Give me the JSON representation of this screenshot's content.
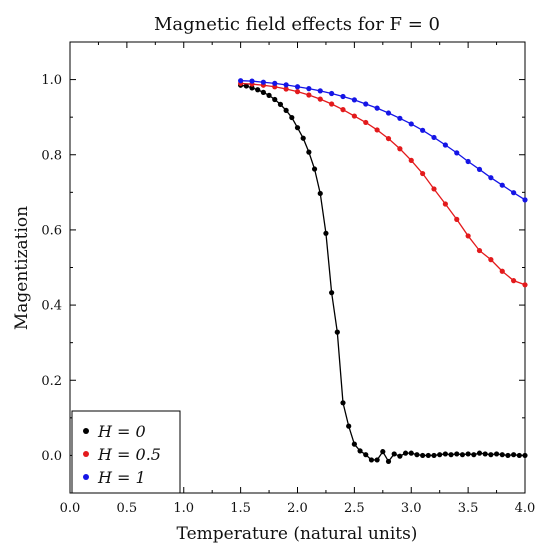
{
  "chart_data": {
    "type": "line",
    "title": "Magnetic field effects for F = 0",
    "xlabel": "Temperature (natural units)",
    "ylabel": "Magentization",
    "xlim": [
      0.0,
      4.0
    ],
    "ylim": [
      -0.1,
      1.1
    ],
    "xticks": [
      "0.0",
      "0.5",
      "1.0",
      "1.5",
      "2.0",
      "2.5",
      "3.0",
      "3.5",
      "4.0"
    ],
    "yticks": [
      "0.0",
      "0.2",
      "0.4",
      "0.6",
      "0.8",
      "1.0"
    ],
    "grid": false,
    "legend_position": "bottom-left",
    "series": [
      {
        "name": "H = 0",
        "color": "#000000",
        "x": [
          1.5,
          1.55,
          1.6,
          1.65,
          1.7,
          1.75,
          1.8,
          1.85,
          1.9,
          1.95,
          2.0,
          2.05,
          2.1,
          2.15,
          2.2,
          2.25,
          2.3,
          2.35,
          2.4,
          2.45,
          2.5,
          2.55,
          2.6,
          2.65,
          2.7,
          2.75,
          2.8,
          2.85,
          2.9,
          2.95,
          3.0,
          3.05,
          3.1,
          3.15,
          3.2,
          3.25,
          3.3,
          3.35,
          3.4,
          3.45,
          3.5,
          3.55,
          3.6,
          3.65,
          3.7,
          3.75,
          3.8,
          3.85,
          3.9,
          3.95,
          4.0
        ],
        "values": [
          0.985,
          0.983,
          0.978,
          0.973,
          0.966,
          0.958,
          0.947,
          0.934,
          0.918,
          0.899,
          0.872,
          0.844,
          0.807,
          0.762,
          0.697,
          0.591,
          0.433,
          0.328,
          0.14,
          0.078,
          0.03,
          0.012,
          0.002,
          -0.012,
          -0.012,
          0.01,
          -0.016,
          0.004,
          -0.002,
          0.006,
          0.006,
          0.002,
          0.0,
          0.0,
          0.0,
          0.002,
          0.004,
          0.002,
          0.004,
          0.002,
          0.004,
          0.002,
          0.006,
          0.004,
          0.002,
          0.004,
          0.002,
          0.0,
          0.002,
          0.0,
          0.0
        ]
      },
      {
        "name": "H = 0.5",
        "color": "#e31a1c",
        "x": [
          1.5,
          1.6,
          1.7,
          1.8,
          1.9,
          2.0,
          2.1,
          2.2,
          2.3,
          2.4,
          2.5,
          2.6,
          2.7,
          2.8,
          2.9,
          3.0,
          3.1,
          3.2,
          3.3,
          3.4,
          3.5,
          3.6,
          3.7,
          3.8,
          3.9,
          4.0
        ],
        "values": [
          0.99,
          0.988,
          0.985,
          0.981,
          0.975,
          0.968,
          0.959,
          0.948,
          0.935,
          0.92,
          0.903,
          0.886,
          0.866,
          0.843,
          0.816,
          0.785,
          0.75,
          0.709,
          0.669,
          0.628,
          0.584,
          0.545,
          0.521,
          0.49,
          0.465,
          0.454
        ]
      },
      {
        "name": "H = 1",
        "color": "#1515e6",
        "x": [
          1.5,
          1.6,
          1.7,
          1.8,
          1.9,
          2.0,
          2.1,
          2.2,
          2.3,
          2.4,
          2.5,
          2.6,
          2.7,
          2.8,
          2.9,
          3.0,
          3.1,
          3.2,
          3.3,
          3.4,
          3.5,
          3.6,
          3.7,
          3.8,
          3.9,
          4.0
        ],
        "values": [
          0.997,
          0.996,
          0.993,
          0.99,
          0.986,
          0.981,
          0.976,
          0.97,
          0.963,
          0.955,
          0.946,
          0.935,
          0.924,
          0.911,
          0.897,
          0.882,
          0.865,
          0.846,
          0.826,
          0.805,
          0.782,
          0.761,
          0.739,
          0.719,
          0.699,
          0.68
        ]
      }
    ]
  }
}
